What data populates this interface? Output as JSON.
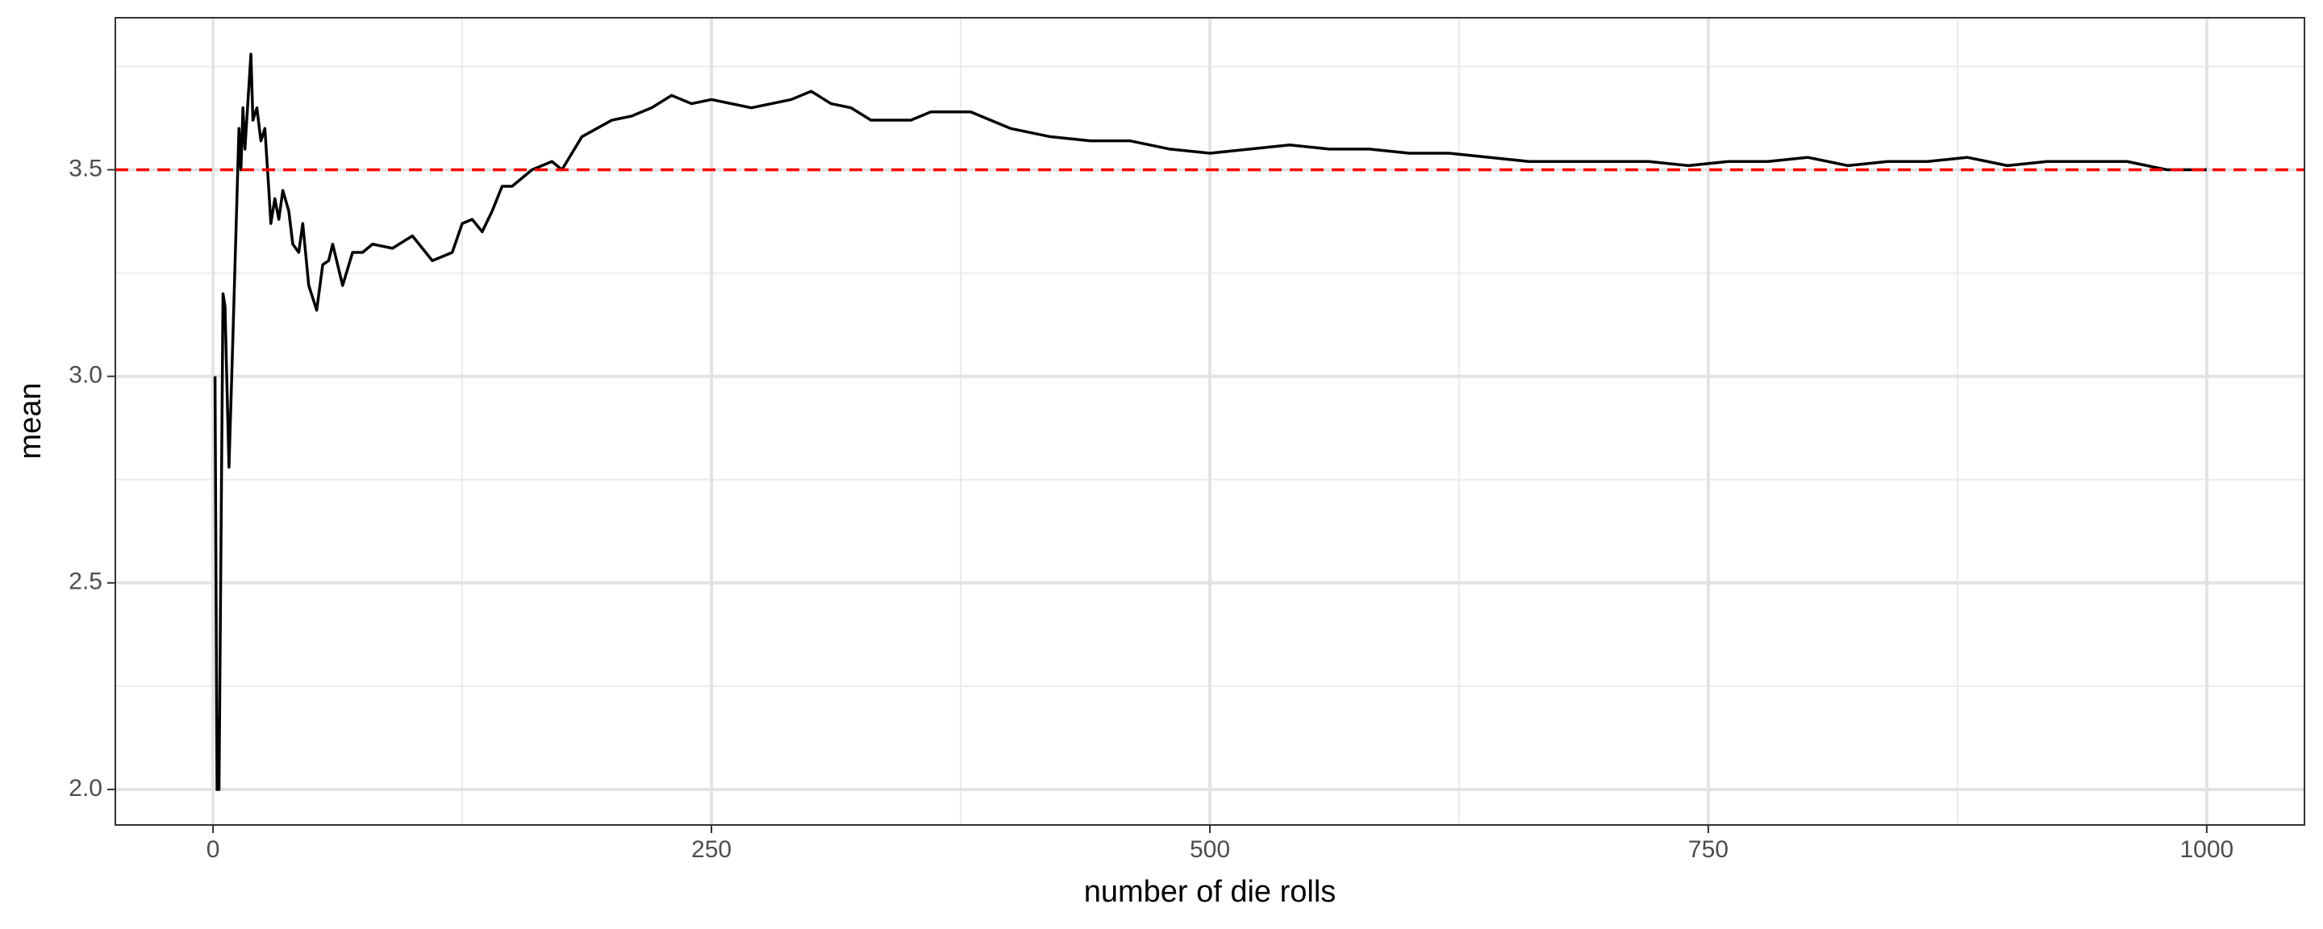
{
  "chart_data": {
    "type": "line",
    "x_label": "number of die rolls",
    "y_label": "mean",
    "x": [
      1,
      2,
      3,
      5,
      6,
      8,
      10,
      13,
      14,
      15,
      16,
      19,
      20,
      22,
      24,
      26,
      28,
      29,
      31,
      33,
      35,
      38,
      40,
      43,
      45,
      48,
      52,
      55,
      58,
      60,
      65,
      70,
      75,
      80,
      90,
      100,
      110,
      120,
      125,
      130,
      135,
      140,
      145,
      150,
      160,
      170,
      175,
      185,
      200,
      210,
      220,
      230,
      240,
      250,
      260,
      270,
      280,
      290,
      300,
      310,
      320,
      330,
      340,
      350,
      360,
      370,
      380,
      390,
      400,
      420,
      440,
      460,
      480,
      500,
      520,
      540,
      560,
      580,
      600,
      620,
      640,
      660,
      680,
      700,
      720,
      740,
      760,
      780,
      800,
      820,
      840,
      860,
      880,
      900,
      920,
      940,
      960,
      980,
      1000
    ],
    "series": [
      {
        "color": "#000000",
        "values": [
          3.0,
          2.0,
          2.0,
          3.2,
          3.17,
          2.78,
          3.1,
          3.6,
          3.5,
          3.65,
          3.55,
          3.78,
          3.62,
          3.65,
          3.57,
          3.6,
          3.45,
          3.37,
          3.43,
          3.38,
          3.45,
          3.4,
          3.32,
          3.3,
          3.37,
          3.22,
          3.16,
          3.27,
          3.28,
          3.32,
          3.22,
          3.3,
          3.3,
          3.32,
          3.31,
          3.34,
          3.28,
          3.3,
          3.37,
          3.38,
          3.35,
          3.4,
          3.46,
          3.46,
          3.5,
          3.52,
          3.5,
          3.58,
          3.62,
          3.63,
          3.65,
          3.68,
          3.66,
          3.67,
          3.66,
          3.65,
          3.66,
          3.67,
          3.69,
          3.66,
          3.65,
          3.62,
          3.62,
          3.62,
          3.64,
          3.64,
          3.64,
          3.62,
          3.6,
          3.58,
          3.57,
          3.57,
          3.55,
          3.54,
          3.55,
          3.56,
          3.55,
          3.55,
          3.54,
          3.54,
          3.53,
          3.52,
          3.52,
          3.52,
          3.52,
          3.51,
          3.52,
          3.52,
          3.53,
          3.51,
          3.52,
          3.52,
          3.53,
          3.51,
          3.52,
          3.52,
          3.52,
          3.5,
          3.5
        ]
      }
    ],
    "reference_line": {
      "value": 3.5,
      "color": "#ff0000"
    },
    "xlim": [
      -49,
      1049
    ],
    "ylim": [
      1.914,
      3.868
    ],
    "xticks": [
      0,
      250,
      500,
      750,
      1000
    ],
    "yticks": [
      {
        "value": 2,
        "label": "2.0"
      },
      2.5,
      {
        "value": 3,
        "label": "3.0"
      },
      3.5
    ],
    "x_minor_ticks": [
      125,
      375,
      625,
      875
    ],
    "y_minor_ticks": [
      2.25,
      2.75,
      3.25,
      3.75
    ],
    "grid": true
  }
}
